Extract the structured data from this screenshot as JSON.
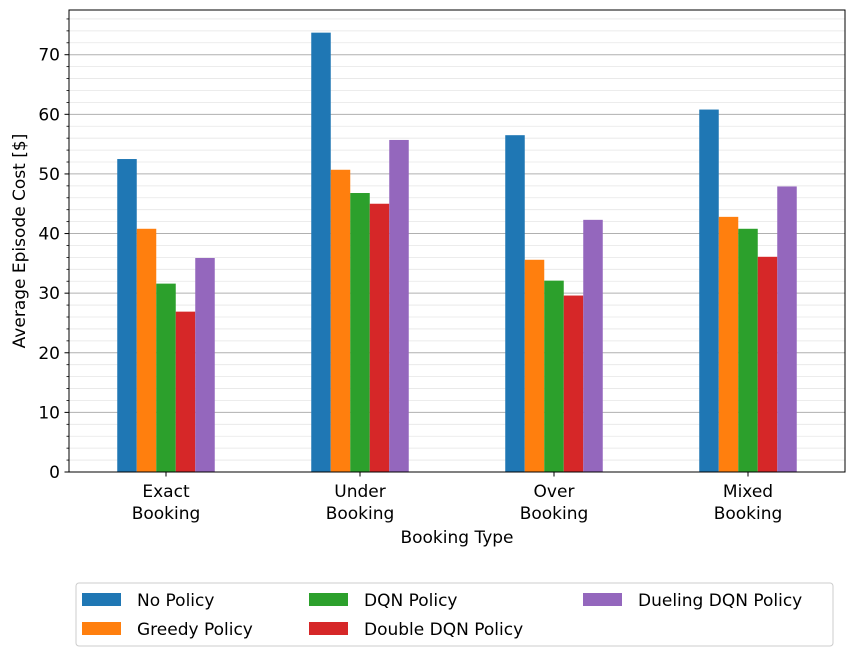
{
  "chart_data": {
    "type": "bar",
    "title": "",
    "xlabel": "Booking Type",
    "ylabel": "Average Episode Cost [$]",
    "ylim": [
      0,
      77.5
    ],
    "yticks": [
      0,
      10,
      20,
      30,
      40,
      50,
      60,
      70
    ],
    "minor_tick_step": 2,
    "grid": true,
    "legend_position": "bottom-center",
    "categories": [
      [
        "Exact",
        "Booking"
      ],
      [
        "Under",
        "Booking"
      ],
      [
        "Over",
        "Booking"
      ],
      [
        "Mixed",
        "Booking"
      ]
    ],
    "series": [
      {
        "name": "No Policy",
        "color": "#1f77b4",
        "values": [
          52.5,
          73.7,
          56.5,
          60.8
        ]
      },
      {
        "name": "Greedy Policy",
        "color": "#ff7f0e",
        "values": [
          40.8,
          50.7,
          35.6,
          42.8
        ]
      },
      {
        "name": "DQN Policy",
        "color": "#2ca02c",
        "values": [
          31.6,
          46.8,
          32.1,
          40.8
        ]
      },
      {
        "name": "Double DQN Policy",
        "color": "#d62728",
        "values": [
          26.9,
          45.0,
          29.6,
          36.1
        ]
      },
      {
        "name": "Dueling DQN Policy",
        "color": "#9467bd",
        "values": [
          35.9,
          55.7,
          42.3,
          47.9
        ]
      }
    ]
  }
}
